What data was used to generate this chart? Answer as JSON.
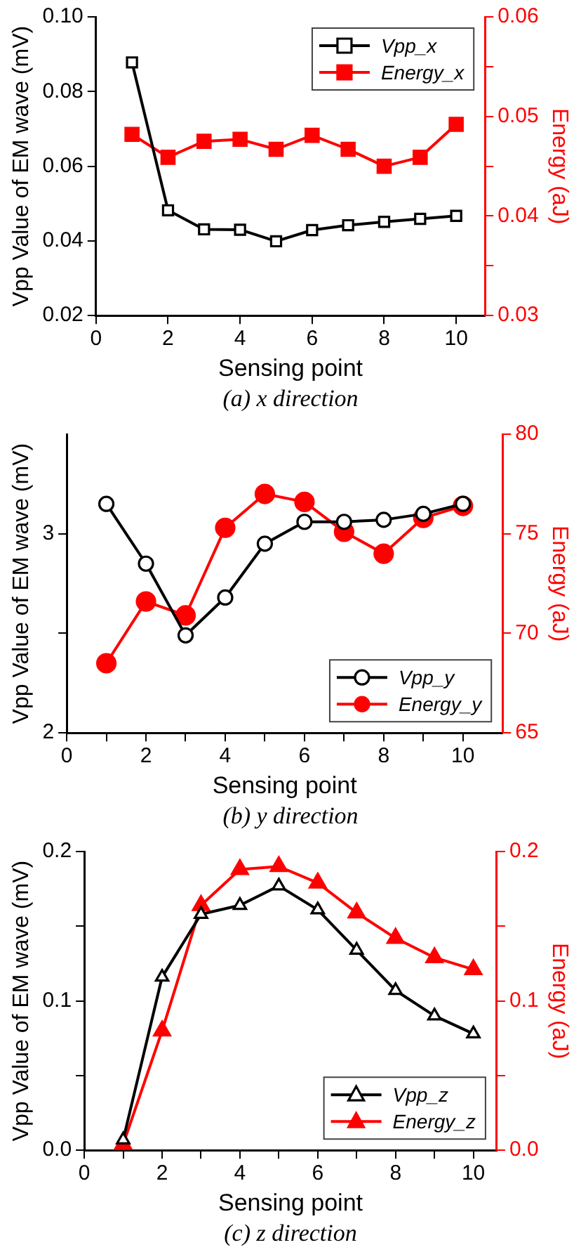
{
  "chart_data": [
    {
      "type": "line",
      "xlabel": "Sensing point",
      "ylabel": "Vpp Value of EM wave (mV)",
      "y2label": "Energy (aJ)",
      "annotations": [
        "(a) x direction"
      ],
      "x": [
        1,
        2,
        3,
        4,
        5,
        6,
        7,
        8,
        9,
        10
      ],
      "xlim": [
        0,
        10.8
      ],
      "xticks": [
        0,
        2,
        4,
        6,
        8,
        10
      ],
      "ylim": [
        0.02,
        0.1
      ],
      "yticks": [
        0.02,
        0.04,
        0.06,
        0.08,
        {
          "value": 0.1,
          "label": "0.10"
        }
      ],
      "y2lim": [
        0.03,
        0.06
      ],
      "y2ticks": [
        0.03,
        {
          "value": 0.035,
          "label": null
        },
        0.04,
        {
          "value": 0.045,
          "label": null
        },
        0.05,
        {
          "value": 0.055,
          "label": null
        },
        0.06
      ],
      "grid": false,
      "legend": "top right",
      "line_style": "solid",
      "series": [
        {
          "name": "Vpp_x",
          "color": "#000000",
          "marker": "square",
          "values": [
            0.0878,
            0.0482,
            0.0431,
            0.043,
            0.0399,
            0.0429,
            0.0442,
            0.0451,
            0.0459,
            0.0467
          ]
        },
        {
          "name": "Energy_x",
          "color": "#ff0000",
          "marker": "square",
          "axis": "y2",
          "values": [
            0.0482,
            0.0459,
            0.0475,
            0.0477,
            0.0467,
            0.0481,
            0.0467,
            0.045,
            0.0459,
            0.0492
          ]
        }
      ]
    },
    {
      "type": "line",
      "xlabel": "Sensing point",
      "ylabel": "Vpp Value of EM wave (mV)",
      "y2label": "Energy (aJ)",
      "annotations": [
        "(b) y direction"
      ],
      "x": [
        1,
        2,
        3,
        4,
        5,
        6,
        7,
        8,
        9,
        10
      ],
      "xlim": [
        0,
        11
      ],
      "xticks": [
        0,
        {
          "value": 1,
          "label": null
        },
        2,
        {
          "value": 3,
          "label": null
        },
        4,
        {
          "value": 5,
          "label": null
        },
        6,
        {
          "value": 7,
          "label": null
        },
        8,
        {
          "value": 9,
          "label": null
        },
        10
      ],
      "ylim": [
        2,
        3.5
      ],
      "yticks": [
        2,
        {
          "value": 2.5,
          "label": null
        },
        3
      ],
      "y2lim": [
        65,
        80
      ],
      "y2ticks": [
        65,
        70,
        75,
        80
      ],
      "grid": false,
      "legend": "bottom right",
      "line_style": "solid",
      "series": [
        {
          "name": "Vpp_y",
          "color": "#000000",
          "marker": "circle",
          "values": [
            3.15,
            2.85,
            2.49,
            2.68,
            2.95,
            3.06,
            3.06,
            3.07,
            3.1,
            3.15
          ]
        },
        {
          "name": "Energy_y",
          "color": "#ff0000",
          "marker": "circle",
          "axis": "y2",
          "values": [
            68.5,
            71.6,
            70.9,
            75.3,
            77.0,
            76.6,
            75.1,
            74.0,
            75.8,
            76.4
          ]
        }
      ]
    },
    {
      "type": "line",
      "xlabel": "Sensing point",
      "ylabel": "Vpp Value of EM wave (mV)",
      "y2label": "Energy (aJ)",
      "annotations": [
        "(c) z direction"
      ],
      "x": [
        1,
        2,
        3,
        4,
        5,
        6,
        7,
        8,
        9,
        10
      ],
      "xlim": [
        0,
        10.6
      ],
      "xticks": [
        0,
        {
          "value": 1,
          "label": null
        },
        2,
        {
          "value": 3,
          "label": null
        },
        4,
        {
          "value": 5,
          "label": null
        },
        6,
        {
          "value": 7,
          "label": null
        },
        8,
        {
          "value": 9,
          "label": null
        },
        10
      ],
      "ylim": [
        0,
        0.2
      ],
      "yticks": [
        {
          "value": 0,
          "label": "0.0"
        },
        {
          "value": 0.05,
          "label": null
        },
        0.1,
        {
          "value": 0.15,
          "label": null
        },
        0.2
      ],
      "y2lim": [
        0,
        0.2
      ],
      "y2ticks": [
        {
          "value": 0,
          "label": "0.0"
        },
        {
          "value": 0.05,
          "label": null
        },
        0.1,
        {
          "value": 0.15,
          "label": null
        },
        0.2
      ],
      "grid": false,
      "legend": "bottom right",
      "line_style": "solid",
      "series": [
        {
          "name": "Vpp_z",
          "color": "#000000",
          "marker": "triangle",
          "values": [
            0.007,
            0.116,
            0.158,
            0.164,
            0.177,
            0.161,
            0.134,
            0.107,
            0.09,
            0.078
          ]
        },
        {
          "name": "Energy_z",
          "color": "#ff0000",
          "marker": "triangle",
          "axis": "y2",
          "values": [
            0.004,
            0.08,
            0.164,
            0.188,
            0.19,
            0.179,
            0.159,
            0.142,
            0.129,
            0.121
          ]
        }
      ]
    }
  ]
}
